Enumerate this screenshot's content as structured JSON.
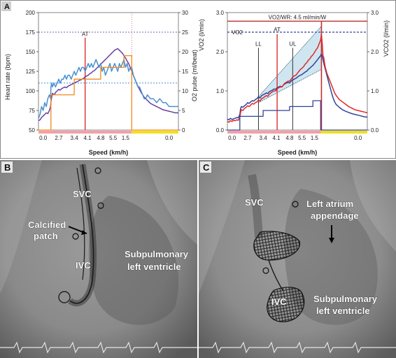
{
  "panels": {
    "a_label": "A",
    "b_label": "B",
    "c_label": "C"
  },
  "colors": {
    "heart_rate": "#6a3fa0",
    "o2_pulse": "#4a90d0",
    "workload": "#f08a1c",
    "at_line": "#d83030",
    "vo2": "#33429a",
    "vco2": "#e02828",
    "phase_pink": "#f4a0a8",
    "phase_yellow": "#f0e020",
    "fill": "#cfe6f0"
  },
  "chart_data": [
    {
      "type": "line",
      "panel": "A-left",
      "xlabel": "Speed (km/h)",
      "ylabel_left": "Heart rate (bpm)",
      "ylabel_right": "O2 pulse (ml/beat)",
      "ylim_left": [
        50,
        200
      ],
      "ylim_right": [
        0,
        30
      ],
      "yticks_left": [
        "50",
        "75",
        "100",
        "125",
        "150",
        "175",
        "200"
      ],
      "yticks_right": [
        "0",
        "5",
        "10",
        "15",
        "20",
        "25",
        "30"
      ],
      "xticks": [
        "0.0",
        "2.7",
        "3.4",
        "4.1",
        "4.8",
        "5.5",
        "1.5",
        "0.0"
      ],
      "annotations": [
        "AT"
      ],
      "series": [
        {
          "key": "heart_rate",
          "color": "#6a3fa0",
          "t": [
            0,
            0.1,
            0.2,
            0.3,
            0.4,
            0.5,
            0.6,
            0.7,
            0.78,
            0.8,
            0.85,
            0.9,
            0.95,
            1.0,
            1.05,
            1.1,
            1.2,
            1.3,
            1.4,
            1.5,
            1.6,
            1.7,
            1.8,
            1.9,
            2.0,
            2.1,
            2.2,
            2.3,
            2.4,
            2.5,
            2.6,
            2.7,
            2.8,
            2.9,
            3.0,
            3.1,
            3.2,
            3.3,
            3.4,
            3.5,
            3.6,
            3.7,
            3.8,
            3.9,
            4.0,
            4.1,
            4.2,
            4.3,
            4.4,
            4.5,
            4.6,
            4.7,
            4.8,
            4.9,
            5.0,
            5.1,
            5.2,
            5.3,
            5.4,
            5.5,
            5.6,
            5.7,
            5.8,
            5.9,
            6.0,
            6.1,
            6.2,
            6.3,
            6.4,
            6.5,
            6.6,
            6.7,
            6.8,
            6.9,
            7.0,
            7.1,
            7.2,
            7.3,
            7.4,
            7.5,
            7.6,
            7.7,
            7.8,
            7.9,
            8.0,
            8.2,
            8.4,
            8.6,
            8.8,
            9.0
          ],
          "y": [
            62,
            63,
            66,
            68,
            70,
            72,
            71,
            75,
            80,
            86,
            92,
            97,
            96,
            95,
            96,
            98,
            100,
            102,
            101,
            103,
            104,
            105,
            104,
            106,
            107,
            108,
            109,
            110,
            111,
            112,
            113,
            114,
            115,
            116,
            118,
            119,
            120,
            122,
            123,
            125,
            126,
            128,
            130,
            132,
            134,
            136,
            138,
            140,
            142,
            144,
            146,
            148,
            150,
            152,
            153,
            154,
            152,
            150,
            148,
            145,
            142,
            138,
            135,
            130,
            125,
            120,
            115,
            110,
            106,
            102,
            98,
            95,
            92,
            90,
            88,
            86,
            84,
            83,
            82,
            81,
            80,
            79,
            78,
            77,
            76,
            75,
            74,
            73,
            72,
            72
          ]
        },
        {
          "key": "o2_pulse",
          "color": "#4a90d0",
          "t": [
            0,
            0.1,
            0.2,
            0.3,
            0.4,
            0.5,
            0.6,
            0.7,
            0.78,
            0.8,
            0.85,
            0.9,
            1.0,
            1.1,
            1.2,
            1.3,
            1.4,
            1.5,
            1.6,
            1.7,
            1.8,
            1.9,
            2.0,
            2.1,
            2.2,
            2.3,
            2.4,
            2.5,
            2.6,
            2.7,
            2.8,
            2.9,
            3.0,
            3.1,
            3.2,
            3.3,
            3.4,
            3.5,
            3.6,
            3.7,
            3.8,
            3.9,
            4.0,
            4.1,
            4.2,
            4.3,
            4.4,
            4.5,
            4.6,
            4.7,
            4.8,
            4.9,
            5.0,
            5.1,
            5.2,
            5.3,
            5.4,
            5.5,
            5.6,
            5.7,
            5.8,
            5.9,
            6.0,
            6.1,
            6.2,
            6.3,
            6.4,
            6.5,
            6.6,
            6.7,
            6.8,
            6.9,
            7.0,
            7.2,
            7.4,
            7.6,
            7.8,
            8.0,
            8.2,
            8.4,
            8.6,
            8.8,
            9.0
          ],
          "y": [
            3,
            4,
            6,
            5,
            7,
            6,
            8,
            9,
            8,
            11,
            12,
            11,
            12,
            11,
            12,
            13,
            12,
            13,
            13,
            14,
            13,
            14,
            14,
            13,
            14,
            15,
            14,
            15,
            16,
            15,
            16,
            16,
            15,
            16,
            17,
            16,
            17,
            16,
            17,
            18,
            17,
            16,
            17,
            15,
            16,
            14,
            15,
            16,
            17,
            15,
            16,
            17,
            16,
            15,
            17,
            16,
            17,
            18,
            16,
            17,
            15,
            16,
            16,
            14,
            13,
            12,
            11,
            11,
            10,
            9,
            8,
            8,
            9,
            8,
            8,
            7,
            8,
            7,
            7,
            6,
            6,
            6,
            6
          ]
        },
        {
          "key": "workload",
          "color": "#f08a1c",
          "t": [
            0,
            0.8,
            0.8,
            2.3,
            2.3,
            4.0,
            4.0,
            5.5,
            5.5,
            6.0,
            6.0,
            7.0,
            7.0,
            9.0
          ],
          "y": [
            0,
            0,
            9,
            9,
            13,
            13,
            16,
            16,
            19,
            19,
            0,
            0,
            0,
            0
          ]
        }
      ]
    },
    {
      "type": "line",
      "panel": "A-right",
      "xlabel": "Speed (km/h)",
      "ylabel_left": "VO2 (l/min)",
      "ylabel_right": "VCO2 (l/min)",
      "ylim_left": [
        0,
        3
      ],
      "ylim_right": [
        0,
        3
      ],
      "yticks_left": [
        "0.0",
        "1.0",
        "2.0",
        "3.0"
      ],
      "yticks_right": [
        "0.0",
        "1.0",
        "2.0",
        "3.0"
      ],
      "xticks": [
        "0.0",
        "2.7",
        "3.4",
        "4.1",
        "4.8",
        "5.5",
        "1.5",
        "0.0"
      ],
      "annotations": [
        "VO2/WR: 4.5 ml/min/W",
        "VO2",
        "AT",
        "LL",
        "UL"
      ],
      "series": [
        {
          "key": "vo2",
          "color": "#33429a",
          "t": [
            0,
            0.1,
            0.2,
            0.3,
            0.4,
            0.5,
            0.6,
            0.7,
            0.8,
            0.85,
            0.9,
            1.0,
            1.1,
            1.2,
            1.3,
            1.4,
            1.5,
            1.6,
            1.7,
            1.8,
            1.9,
            2.0,
            2.1,
            2.2,
            2.3,
            2.4,
            2.5,
            2.6,
            2.7,
            2.8,
            2.9,
            3.0,
            3.1,
            3.2,
            3.3,
            3.4,
            3.5,
            3.6,
            3.7,
            3.8,
            3.9,
            4.0,
            4.1,
            4.2,
            4.3,
            4.4,
            4.5,
            4.6,
            4.7,
            4.8,
            4.9,
            5.0,
            5.1,
            5.2,
            5.3,
            5.4,
            5.5,
            5.6,
            5.7,
            5.8,
            5.9,
            6.0,
            6.05,
            6.1,
            6.15,
            6.2,
            6.3,
            6.4,
            6.5,
            6.6,
            6.7,
            6.8,
            6.9,
            7.0,
            7.2,
            7.4,
            7.6,
            7.8,
            8.0,
            8.2,
            8.4,
            8.6,
            8.8,
            9.0
          ],
          "y": [
            0.28,
            0.26,
            0.3,
            0.27,
            0.29,
            0.3,
            0.32,
            0.31,
            0.4,
            0.55,
            0.6,
            0.58,
            0.62,
            0.65,
            0.7,
            0.68,
            0.72,
            0.75,
            0.74,
            0.78,
            0.8,
            0.85,
            0.82,
            0.88,
            0.9,
            0.92,
            0.95,
            0.93,
            0.98,
            1.0,
            1.02,
            1.05,
            1.04,
            1.08,
            1.1,
            1.12,
            1.1,
            1.15,
            1.18,
            1.2,
            1.22,
            1.2,
            1.25,
            1.28,
            1.3,
            1.32,
            1.35,
            1.38,
            1.4,
            1.42,
            1.45,
            1.48,
            1.5,
            1.55,
            1.58,
            1.62,
            1.65,
            1.7,
            1.75,
            1.8,
            1.85,
            1.9,
            1.95,
            1.88,
            1.8,
            1.7,
            1.55,
            1.4,
            1.25,
            1.1,
            0.95,
            0.82,
            0.72,
            0.65,
            0.58,
            0.52,
            0.48,
            0.45,
            0.42,
            0.4,
            0.38,
            0.36,
            0.34,
            0.33
          ]
        },
        {
          "key": "vco2",
          "color": "#e02828",
          "t": [
            0,
            0.1,
            0.2,
            0.3,
            0.4,
            0.5,
            0.6,
            0.7,
            0.8,
            0.85,
            0.9,
            1.0,
            1.1,
            1.2,
            1.3,
            1.4,
            1.5,
            1.6,
            1.7,
            1.8,
            1.9,
            2.0,
            2.1,
            2.2,
            2.3,
            2.4,
            2.5,
            2.6,
            2.7,
            2.8,
            2.9,
            3.0,
            3.1,
            3.2,
            3.3,
            3.4,
            3.5,
            3.6,
            3.7,
            3.8,
            3.9,
            4.0,
            4.1,
            4.2,
            4.3,
            4.4,
            4.5,
            4.6,
            4.7,
            4.8,
            4.9,
            5.0,
            5.1,
            5.2,
            5.3,
            5.4,
            5.5,
            5.6,
            5.7,
            5.8,
            5.9,
            6.0,
            6.05,
            6.1,
            6.15,
            6.2,
            6.25,
            6.3,
            6.4,
            6.5,
            6.6,
            6.7,
            6.8,
            6.9,
            7.0,
            7.2,
            7.4,
            7.6,
            7.8,
            8.0,
            8.2,
            8.4,
            8.6,
            8.8,
            9.0
          ],
          "y": [
            0.22,
            0.2,
            0.24,
            0.22,
            0.25,
            0.24,
            0.26,
            0.25,
            0.32,
            0.45,
            0.52,
            0.5,
            0.55,
            0.58,
            0.62,
            0.6,
            0.64,
            0.68,
            0.66,
            0.7,
            0.72,
            0.76,
            0.74,
            0.8,
            0.82,
            0.85,
            0.88,
            0.86,
            0.92,
            0.95,
            0.98,
            1.0,
            1.0,
            1.05,
            1.08,
            1.1,
            1.1,
            1.15,
            1.2,
            1.22,
            1.25,
            1.25,
            1.3,
            1.35,
            1.38,
            1.4,
            1.45,
            1.5,
            1.55,
            1.58,
            1.62,
            1.68,
            1.72,
            1.78,
            1.82,
            1.88,
            1.92,
            1.98,
            2.05,
            2.1,
            2.2,
            2.3,
            2.45,
            2.2,
            1.9,
            1.85,
            1.7,
            1.6,
            1.45,
            1.35,
            1.25,
            1.15,
            1.05,
            0.95,
            0.88,
            0.78,
            0.72,
            0.66,
            0.6,
            0.56,
            0.52,
            0.5,
            0.48,
            0.46,
            0.44
          ]
        },
        {
          "key": "workload",
          "color": "#33429a",
          "t": [
            0,
            0.8,
            0.8,
            2.3,
            2.3,
            4.0,
            4.0,
            5.5,
            5.5,
            6.0,
            6.0,
            7.0,
            7.0,
            9.0
          ],
          "y": [
            0,
            0,
            0.35,
            0.35,
            0.5,
            0.5,
            0.6,
            0.6,
            0.75,
            0.75,
            0,
            0,
            0,
            0
          ]
        }
      ]
    }
  ],
  "images": {
    "b": {
      "labels": {
        "svc": "SVC",
        "calcified": "Calcified\npatch",
        "ivc": "IVC",
        "subpulmonary": "Subpulmonary\nleft ventricle"
      }
    },
    "c": {
      "labels": {
        "svc": "SVC",
        "left_atrium": "Left atrium\nappendage",
        "ivc": "IVC",
        "subpulmonary": "Subpulmonary\nleft ventricle"
      }
    }
  }
}
